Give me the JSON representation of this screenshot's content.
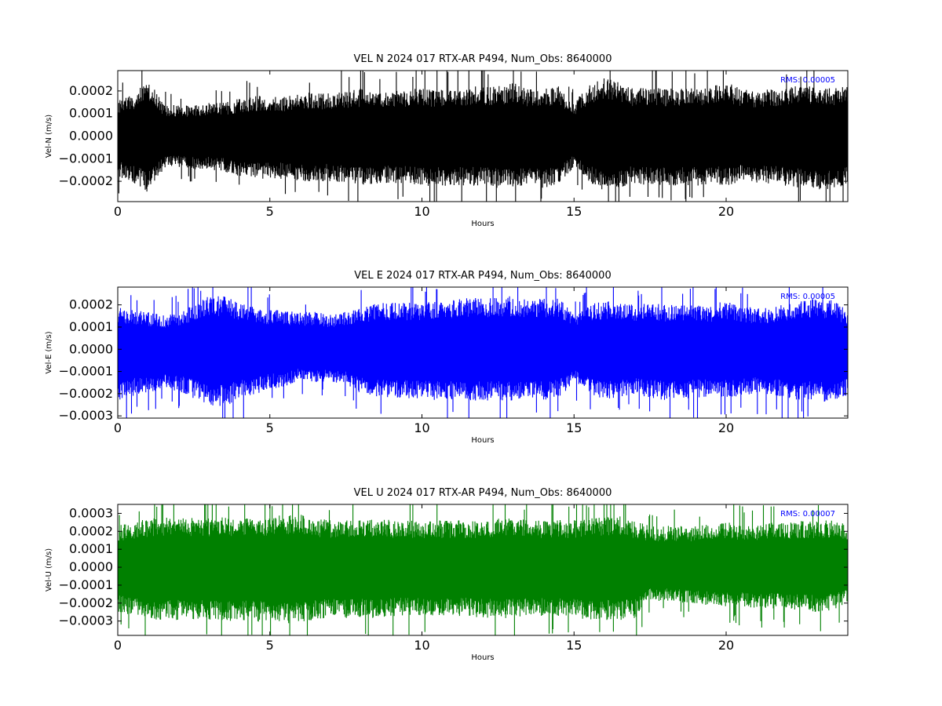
{
  "chart_data": [
    {
      "type": "line",
      "title": "VEL N 2024 017 RTX-AR  P494, Num_Obs: 8640000",
      "xlabel": "Hours",
      "ylabel": "Vel-N (m/s)",
      "xlim": [
        0,
        24
      ],
      "ylim": [
        -0.00029,
        0.00029
      ],
      "xticks": [
        0,
        5,
        10,
        15,
        20
      ],
      "xtick_labels": [
        "0",
        "5",
        "10",
        "15",
        "20"
      ],
      "yticks": [
        -0.0002,
        -0.0001,
        0.0,
        0.0001,
        0.0002
      ],
      "ytick_labels": [
        "−0.0002",
        "−0.0001",
        "0.0000",
        "0.0001",
        "0.0002"
      ],
      "annotation": "RMS:  0.00005",
      "annotation_color": "#0000ff",
      "grid": false,
      "series": [
        {
          "color": "#000000",
          "x": [
            0,
            0.5,
            1,
            1.5,
            2,
            2.5,
            3,
            3.5,
            4,
            4.5,
            5,
            5.5,
            6,
            6.5,
            7,
            7.5,
            8,
            8.5,
            9,
            9.5,
            10,
            10.5,
            11,
            11.5,
            12,
            12.5,
            13,
            13.5,
            14,
            14.5,
            15,
            15.5,
            16,
            16.5,
            17,
            17.5,
            18,
            18.5,
            19,
            19.5,
            20,
            20.5,
            21,
            21.5,
            22,
            22.5,
            23,
            23.5,
            24
          ],
          "upper": [
            0.00015,
            0.00018,
            0.00025,
            0.00014,
            0.00013,
            0.00013,
            0.00014,
            0.00014,
            0.00016,
            0.00017,
            0.00017,
            0.00017,
            0.00019,
            0.00018,
            0.00018,
            0.00019,
            0.0002,
            0.00019,
            0.00019,
            0.0002,
            0.0002,
            0.0002,
            0.0002,
            0.00021,
            0.00021,
            0.00021,
            0.00023,
            0.0002,
            0.0002,
            0.00021,
            0.00014,
            0.00022,
            0.00025,
            0.00023,
            0.0002,
            0.00021,
            0.0002,
            0.0002,
            0.00021,
            0.00021,
            0.00023,
            0.0002,
            0.00019,
            0.0002,
            0.00021,
            0.00021,
            0.00022,
            0.00021,
            0.00021
          ],
          "lower": [
            -0.00017,
            -0.0002,
            -0.00024,
            -0.00014,
            -0.00013,
            -0.00014,
            -0.00014,
            -0.00015,
            -0.00017,
            -0.00018,
            -0.00018,
            -0.00018,
            -0.00019,
            -0.00019,
            -0.00019,
            -0.0002,
            -0.00021,
            -0.0002,
            -0.0002,
            -0.0002,
            -0.00021,
            -0.00021,
            -0.00021,
            -0.00021,
            -0.00021,
            -0.00022,
            -0.00022,
            -0.00021,
            -0.00022,
            -0.00021,
            -0.00013,
            -0.0002,
            -0.00023,
            -0.00022,
            -0.0002,
            -0.00021,
            -0.00021,
            -0.00021,
            -0.00021,
            -0.0002,
            -0.00021,
            -0.00019,
            -0.0002,
            -0.0002,
            -0.00021,
            -0.00022,
            -0.00023,
            -0.00022,
            -0.00021
          ]
        }
      ]
    },
    {
      "type": "line",
      "title": "VEL E 2024 017 RTX-AR  P494, Num_Obs: 8640000",
      "xlabel": "Hours",
      "ylabel": "Vel-E (m/s)",
      "xlim": [
        0,
        24
      ],
      "ylim": [
        -0.00031,
        0.00028
      ],
      "xticks": [
        0,
        5,
        10,
        15,
        20
      ],
      "xtick_labels": [
        "0",
        "5",
        "10",
        "15",
        "20"
      ],
      "yticks": [
        -0.0003,
        -0.0002,
        -0.0001,
        0.0,
        0.0001,
        0.0002
      ],
      "ytick_labels": [
        "−0.0003",
        "−0.0002",
        "−0.0001",
        "0.0000",
        "0.0001",
        "0.0002"
      ],
      "annotation": "RMS:  0.00005",
      "annotation_color": "#0000ff",
      "grid": false,
      "series": [
        {
          "color": "#0000ff",
          "x": [
            0,
            0.5,
            1,
            1.5,
            2,
            2.5,
            3,
            3.5,
            4,
            4.5,
            5,
            5.5,
            6,
            6.5,
            7,
            7.5,
            8,
            8.5,
            9,
            9.5,
            10,
            10.5,
            11,
            11.5,
            12,
            12.5,
            13,
            13.5,
            14,
            14.5,
            15,
            15.5,
            16,
            16.5,
            17,
            17.5,
            18,
            18.5,
            19,
            19.5,
            20,
            20.5,
            21,
            21.5,
            22,
            22.5,
            23,
            23.5,
            24
          ],
          "upper": [
            0.00018,
            0.00017,
            0.00016,
            0.00015,
            0.00016,
            0.00019,
            0.00023,
            0.00023,
            0.0002,
            0.00018,
            0.00017,
            0.00017,
            0.00016,
            0.00016,
            0.00015,
            0.00016,
            0.00018,
            0.0002,
            0.0002,
            0.0002,
            0.0002,
            0.00021,
            0.00021,
            0.00022,
            0.00022,
            0.00022,
            0.00023,
            0.00022,
            0.00022,
            0.00022,
            0.00015,
            0.00019,
            0.00021,
            0.0002,
            0.00019,
            0.0002,
            0.00019,
            0.00019,
            0.00019,
            0.00019,
            0.00021,
            0.00018,
            0.00018,
            0.00018,
            0.0002,
            0.00021,
            0.00022,
            0.00021,
            0.00017
          ],
          "lower": [
            -0.00022,
            -0.0002,
            -0.00019,
            -0.00017,
            -0.00018,
            -0.00021,
            -0.00024,
            -0.00025,
            -0.00021,
            -0.0002,
            -0.00017,
            -0.00016,
            -0.00013,
            -0.00014,
            -0.00014,
            -0.00015,
            -0.00019,
            -0.00021,
            -0.00021,
            -0.00021,
            -0.00021,
            -0.00022,
            -0.00022,
            -0.00022,
            -0.00022,
            -0.00022,
            -0.00022,
            -0.00022,
            -0.00022,
            -0.00021,
            -0.00014,
            -0.0002,
            -0.00022,
            -0.00021,
            -0.00019,
            -0.00021,
            -0.00022,
            -0.00021,
            -0.00021,
            -0.0002,
            -0.00021,
            -0.0002,
            -0.00019,
            -0.0002,
            -0.00021,
            -0.00022,
            -0.00022,
            -0.00023,
            -0.0002
          ]
        }
      ]
    },
    {
      "type": "line",
      "title": "VEL U 2024 017 RTX-AR  P494, Num_Obs: 8640000",
      "xlabel": "Hours",
      "ylabel": "Vel-U (m/s)",
      "xlim": [
        0,
        24
      ],
      "ylim": [
        -0.00038,
        0.00035
      ],
      "xticks": [
        0,
        5,
        10,
        15,
        20
      ],
      "xtick_labels": [
        "0",
        "5",
        "10",
        "15",
        "20"
      ],
      "yticks": [
        -0.0003,
        -0.0002,
        -0.0001,
        0.0,
        0.0001,
        0.0002,
        0.0003
      ],
      "ytick_labels": [
        "−0.0003",
        "−0.0002",
        "−0.0001",
        "0.0000",
        "0.0001",
        "0.0002",
        "0.0003"
      ],
      "annotation": "RMS:  0.00007",
      "annotation_color": "#0000ff",
      "grid": false,
      "series": [
        {
          "color": "#008000",
          "x": [
            0,
            0.5,
            1,
            1.5,
            2,
            2.5,
            3,
            3.5,
            4,
            4.5,
            5,
            5.5,
            6,
            6.5,
            7,
            7.5,
            8,
            8.5,
            9,
            9.5,
            10,
            10.5,
            11,
            11.5,
            12,
            12.5,
            13,
            13.5,
            14,
            14.5,
            15,
            15.5,
            16,
            16.5,
            17,
            17.5,
            18,
            18.5,
            19,
            19.5,
            20,
            20.5,
            21,
            21.5,
            22,
            22.5,
            23,
            23.5,
            24
          ],
          "upper": [
            0.00022,
            0.00024,
            0.00026,
            0.00027,
            0.00027,
            0.00026,
            0.00026,
            0.00027,
            0.00026,
            0.00026,
            0.00027,
            0.00028,
            0.00028,
            0.00026,
            0.00025,
            0.00026,
            0.00026,
            0.00026,
            0.00025,
            0.00025,
            0.00025,
            0.00025,
            0.00025,
            0.00025,
            0.00025,
            0.00026,
            0.00027,
            0.00025,
            0.00025,
            0.00025,
            0.00025,
            0.00026,
            0.00027,
            0.00027,
            0.00025,
            0.00022,
            0.00022,
            0.00022,
            0.00022,
            0.00023,
            0.00024,
            0.00023,
            0.00023,
            0.00024,
            0.00024,
            0.00025,
            0.00025,
            0.00025,
            0.00023
          ],
          "lower": [
            -0.00024,
            -0.00026,
            -0.00028,
            -0.00028,
            -0.00028,
            -0.00028,
            -0.00028,
            -0.00029,
            -0.00028,
            -0.00029,
            -0.00029,
            -0.0003,
            -0.00029,
            -0.00028,
            -0.00027,
            -0.00027,
            -0.00027,
            -0.00027,
            -0.00026,
            -0.00026,
            -0.00026,
            -0.00026,
            -0.00026,
            -0.00026,
            -0.00027,
            -0.00027,
            -0.00027,
            -0.00026,
            -0.00026,
            -0.00026,
            -0.00027,
            -0.00028,
            -0.00028,
            -0.00028,
            -0.00027,
            -0.00018,
            -0.00018,
            -0.00019,
            -0.0002,
            -0.0002,
            -0.00021,
            -0.00021,
            -0.00022,
            -0.00022,
            -0.00022,
            -0.00023,
            -0.00024,
            -0.00023,
            -0.00019
          ]
        }
      ]
    }
  ]
}
